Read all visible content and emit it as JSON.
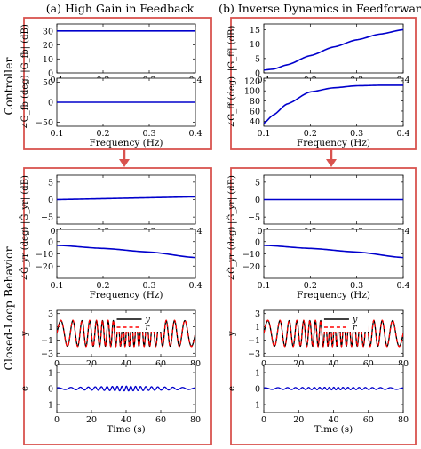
{
  "figure": {
    "col_titles": [
      "(a) High Gain in Feedback",
      "(b) Inverse Dynamics in Feedforward"
    ],
    "row_titles": [
      "Controller",
      "Closed-Loop Behavior"
    ]
  },
  "chart_data": [
    {
      "id": "a_ctrl_mag",
      "type": "line",
      "column": "a",
      "ylabel": "|G_fb| (dB)",
      "xlim": [
        0.1,
        0.4
      ],
      "ylim": [
        0,
        35
      ],
      "yticks": [
        0,
        10,
        20,
        30
      ],
      "xticks": [
        0.1,
        0.2,
        0.3,
        0.4
      ],
      "xlabel": "",
      "series": [
        {
          "x": [
            0.1,
            0.4
          ],
          "y": [
            30,
            30
          ],
          "color": "#0000cc"
        }
      ]
    },
    {
      "id": "a_ctrl_phase",
      "type": "line",
      "column": "a",
      "ylabel": "∠G_fb (deg)",
      "xlim": [
        0.1,
        0.4
      ],
      "ylim": [
        -60,
        60
      ],
      "yticks": [
        -50,
        0,
        50
      ],
      "xticks": [
        0.1,
        0.2,
        0.3,
        0.4
      ],
      "xlabel": "Frequency (Hz)",
      "series": [
        {
          "x": [
            0.1,
            0.4
          ],
          "y": [
            0,
            0
          ],
          "color": "#0000cc"
        }
      ]
    },
    {
      "id": "b_ctrl_mag",
      "type": "line",
      "column": "b",
      "ylabel": "|G_ff| (dB)",
      "xlim": [
        0.1,
        0.4
      ],
      "ylim": [
        0,
        17
      ],
      "yticks": [
        0,
        5,
        10,
        15
      ],
      "xticks": [
        0.1,
        0.2,
        0.3,
        0.4
      ],
      "xlabel": "",
      "series": [
        {
          "x": [
            0.1,
            0.12,
            0.15,
            0.2,
            0.25,
            0.3,
            0.35,
            0.4
          ],
          "y": [
            1,
            1.3,
            2.8,
            6,
            9,
            11.5,
            13.5,
            15
          ],
          "color": "#0000cc"
        }
      ]
    },
    {
      "id": "b_ctrl_phase",
      "type": "line",
      "column": "b",
      "ylabel": "∠G_ff (deg)",
      "xlim": [
        0.1,
        0.4
      ],
      "ylim": [
        30,
        125
      ],
      "yticks": [
        40,
        60,
        80,
        100,
        120
      ],
      "xticks": [
        0.1,
        0.2,
        0.3,
        0.4
      ],
      "xlabel": "Frequency (Hz)",
      "series": [
        {
          "x": [
            0.1,
            0.12,
            0.15,
            0.2,
            0.25,
            0.3,
            0.35,
            0.4
          ],
          "y": [
            36,
            52,
            74,
            98,
            106,
            110,
            111,
            111
          ],
          "color": "#0000cc"
        }
      ]
    },
    {
      "id": "a_cl_mag",
      "type": "line",
      "column": "a",
      "ylabel": "|Ĝ_yr| (dB)",
      "xlim": [
        0.1,
        0.4
      ],
      "ylim": [
        -7,
        7
      ],
      "yticks": [
        -5,
        0,
        5
      ],
      "xticks": [
        0.1,
        0.2,
        0.3,
        0.4
      ],
      "xlabel": "",
      "series": [
        {
          "x": [
            0.1,
            0.4
          ],
          "y": [
            0,
            0.8
          ],
          "color": "#0000cc"
        }
      ]
    },
    {
      "id": "a_cl_phase",
      "type": "line",
      "column": "a",
      "ylabel": "∠Ĝ_yr (deg)",
      "xlim": [
        0.1,
        0.4
      ],
      "ylim": [
        -30,
        10
      ],
      "yticks": [
        -20,
        -10,
        0
      ],
      "xticks": [
        0.1,
        0.2,
        0.3,
        0.4
      ],
      "xlabel": "Frequency (Hz)",
      "series": [
        {
          "x": [
            0.1,
            0.2,
            0.3,
            0.4
          ],
          "y": [
            -3,
            -5.5,
            -8.5,
            -13
          ],
          "color": "#0000cc"
        }
      ]
    },
    {
      "id": "b_cl_mag",
      "type": "line",
      "column": "b",
      "ylabel": "|Ĝ_yr| (dB)",
      "xlim": [
        0.1,
        0.4
      ],
      "ylim": [
        -7,
        7
      ],
      "yticks": [
        -5,
        0,
        5
      ],
      "xticks": [
        0.1,
        0.2,
        0.3,
        0.4
      ],
      "xlabel": "",
      "series": [
        {
          "x": [
            0.1,
            0.4
          ],
          "y": [
            0,
            0
          ],
          "color": "#0000cc"
        }
      ]
    },
    {
      "id": "b_cl_phase",
      "type": "line",
      "column": "b",
      "ylabel": "∠Ĝ_yr (deg)",
      "xlim": [
        0.1,
        0.4
      ],
      "ylim": [
        -30,
        10
      ],
      "yticks": [
        -20,
        -10,
        0
      ],
      "xticks": [
        0.1,
        0.2,
        0.3,
        0.4
      ],
      "xlabel": "Frequency (Hz)",
      "series": [
        {
          "x": [
            0.1,
            0.2,
            0.3,
            0.4
          ],
          "y": [
            -3,
            -5.5,
            -8.5,
            -13
          ],
          "color": "#0000cc"
        }
      ]
    },
    {
      "id": "a_time_y",
      "type": "line",
      "column": "a",
      "ylabel": "y",
      "xlim": [
        0,
        80
      ],
      "ylim": [
        -3.5,
        3.5
      ],
      "yticks": [
        -3,
        -1,
        1,
        3
      ],
      "xticks": [
        0,
        20,
        40,
        60,
        80
      ],
      "xlabel": "",
      "legend": {
        "entries": [
          "y",
          "r"
        ],
        "position": "top-center"
      },
      "signal": {
        "kind": "chirp",
        "f0_hz": 0.1,
        "f1_hz": 0.4,
        "t_end_s": 40,
        "amplitude": 2,
        "y_color": "#000000",
        "r_color": "#ff0000",
        "r_style": "dashed"
      }
    },
    {
      "id": "a_time_e",
      "type": "line",
      "column": "a",
      "ylabel": "e",
      "xlim": [
        0,
        80
      ],
      "ylim": [
        -1.5,
        1.5
      ],
      "yticks": [
        -1,
        0,
        1
      ],
      "xticks": [
        0,
        20,
        40,
        60,
        80
      ],
      "xlabel": "Time (s)",
      "signal": {
        "kind": "error",
        "amplitude_start": 0.05,
        "amplitude_peak": 0.15,
        "color": "#0000cc"
      }
    },
    {
      "id": "b_time_y",
      "type": "line",
      "column": "b",
      "ylabel": "y",
      "xlim": [
        0,
        80
      ],
      "ylim": [
        -3.5,
        3.5
      ],
      "yticks": [
        -3,
        -1,
        1,
        3
      ],
      "xticks": [
        0,
        20,
        40,
        60,
        80
      ],
      "xlabel": "",
      "legend": {
        "entries": [
          "y",
          "r"
        ],
        "position": "top-center"
      },
      "signal": {
        "kind": "chirp",
        "f0_hz": 0.1,
        "f1_hz": 0.4,
        "t_end_s": 40,
        "amplitude": 2,
        "y_color": "#000000",
        "r_color": "#ff0000",
        "r_style": "dashed"
      }
    },
    {
      "id": "b_time_e",
      "type": "line",
      "column": "b",
      "ylabel": "e",
      "xlim": [
        0,
        80
      ],
      "ylim": [
        -1.5,
        1.5
      ],
      "yticks": [
        -1,
        0,
        1
      ],
      "xticks": [
        0,
        20,
        40,
        60,
        80
      ],
      "xlabel": "Time (s)",
      "signal": {
        "kind": "error",
        "amplitude_start": 0.05,
        "amplitude_peak": 0.08,
        "color": "#0000cc"
      }
    }
  ],
  "colors": {
    "box": "#d9534f",
    "arrow": "#d9534f",
    "axis": "#000000"
  }
}
